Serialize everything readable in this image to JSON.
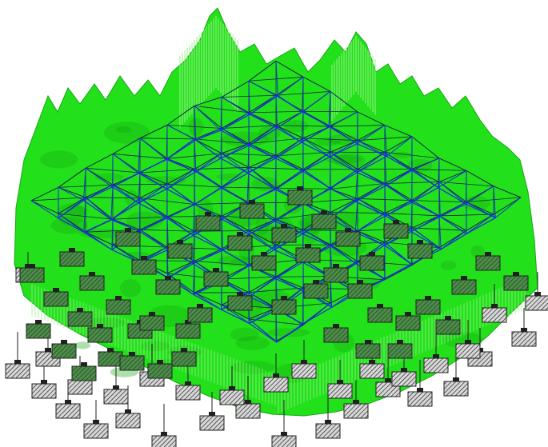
{
  "colors": {
    "background": "#ffffff",
    "terrain_fill": "#22e01a",
    "terrain_dark": "#15a812",
    "terrain_spike": "#9cf28c",
    "grid_blue": "#1530d8",
    "grid_black": "#0e2a40",
    "support_fill_front": "#d8d8d8",
    "support_fill_mid": "#4d8d4a",
    "support_hatch": "#202020",
    "stem": "#202020"
  },
  "icons": {
    "support": "hatched-support-block-icon"
  }
}
